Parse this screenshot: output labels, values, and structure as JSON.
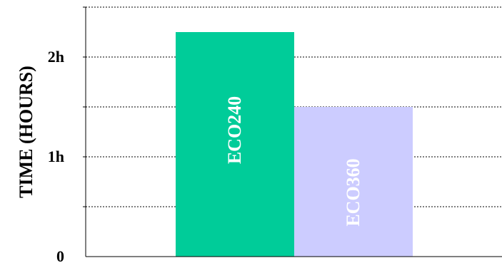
{
  "chart_data": {
    "type": "bar",
    "categories": [
      "ECO240",
      "ECO360"
    ],
    "values": [
      2.25,
      1.5
    ],
    "ylabel": "TIME (HOURS)",
    "ylim": [
      0,
      2.5
    ],
    "yticks": [
      {
        "value": 0,
        "label": "0"
      },
      {
        "value": 1,
        "label": "1h"
      },
      {
        "value": 2,
        "label": "2h"
      }
    ],
    "grid": true,
    "colors": [
      "#00cc99",
      "#ccccff"
    ]
  }
}
